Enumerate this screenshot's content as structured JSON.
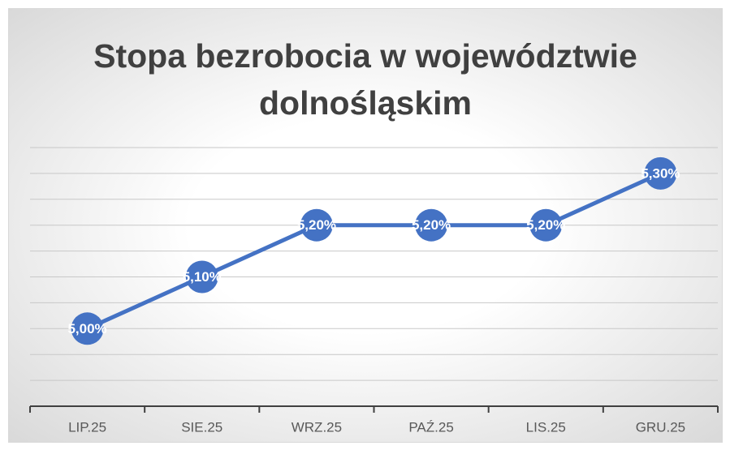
{
  "chart_data": {
    "type": "line",
    "title": "Stopa bezrobocia w województwie dolnośląskim",
    "categories": [
      "LIP.25",
      "SIE.25",
      "WRZ.25",
      "PAŹ.25",
      "LIS.25",
      "GRU.25"
    ],
    "series": [
      {
        "name": "Stopa bezrobocia",
        "color": "#4472c4",
        "values": [
          5.0,
          5.1,
          5.2,
          5.2,
          5.2,
          5.3
        ],
        "value_labels": [
          "5,00%",
          "5,10%",
          "5,20%",
          "5,20%",
          "5,20%",
          "5,30%"
        ]
      }
    ],
    "ylim": [
      4.85,
      5.35
    ],
    "yticks": [
      4.85,
      4.9,
      4.95,
      5.0,
      5.05,
      5.1,
      5.15,
      5.2,
      5.25,
      5.3,
      5.35
    ],
    "grid": true
  }
}
